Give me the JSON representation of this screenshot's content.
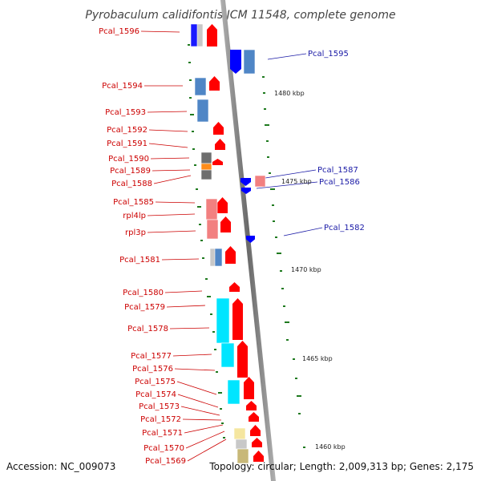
{
  "title": "Pyrobaculum calidifontis JCM 11548, complete genome",
  "footer": {
    "accession": "Accession: NC_009073",
    "summary": "Topology: circular; Length: 2,009,313 bp; Genes: 2,175"
  },
  "colors": {
    "forward": "#ff0000",
    "reverse": "#0000ff",
    "label_left": "#cc0000",
    "label_right": "#1a1aa6",
    "backbone": "#888888",
    "tick": "#1f7a1f",
    "cog_blue": "#1a1aff",
    "cog_steel": "#4f86c6",
    "cog_salmon": "#f28080",
    "cog_cyan": "#00e5ff",
    "cog_gray": "#6e6e6e",
    "cog_orange": "#ff8c1a",
    "cog_silver": "#c8c8c8",
    "cog_khaki": "#c8b878",
    "cog_lightyellow": "#f5e6a0"
  },
  "scale": {
    "labels": [
      "1480 kbp",
      "1475 kbp",
      "1470 kbp",
      "1465 kbp",
      "1460 kbp"
    ]
  },
  "genes_left": [
    "Pcal_1596",
    "Pcal_1594",
    "Pcal_1593",
    "Pcal_1592",
    "Pcal_1591",
    "Pcal_1590",
    "Pcal_1589",
    "Pcal_1588",
    "Pcal_1585",
    "rpl4lp",
    "rpl3p",
    "Pcal_1581",
    "Pcal_1580",
    "Pcal_1579",
    "Pcal_1578",
    "Pcal_1577",
    "Pcal_1576",
    "Pcal_1575",
    "Pcal_1574",
    "Pcal_1573",
    "Pcal_1572",
    "Pcal_1571",
    "Pcal_1570",
    "Pcal_1569"
  ],
  "genes_right": [
    "Pcal_1595",
    "Pcal_1587",
    "Pcal_1586",
    "Pcal_1582"
  ]
}
